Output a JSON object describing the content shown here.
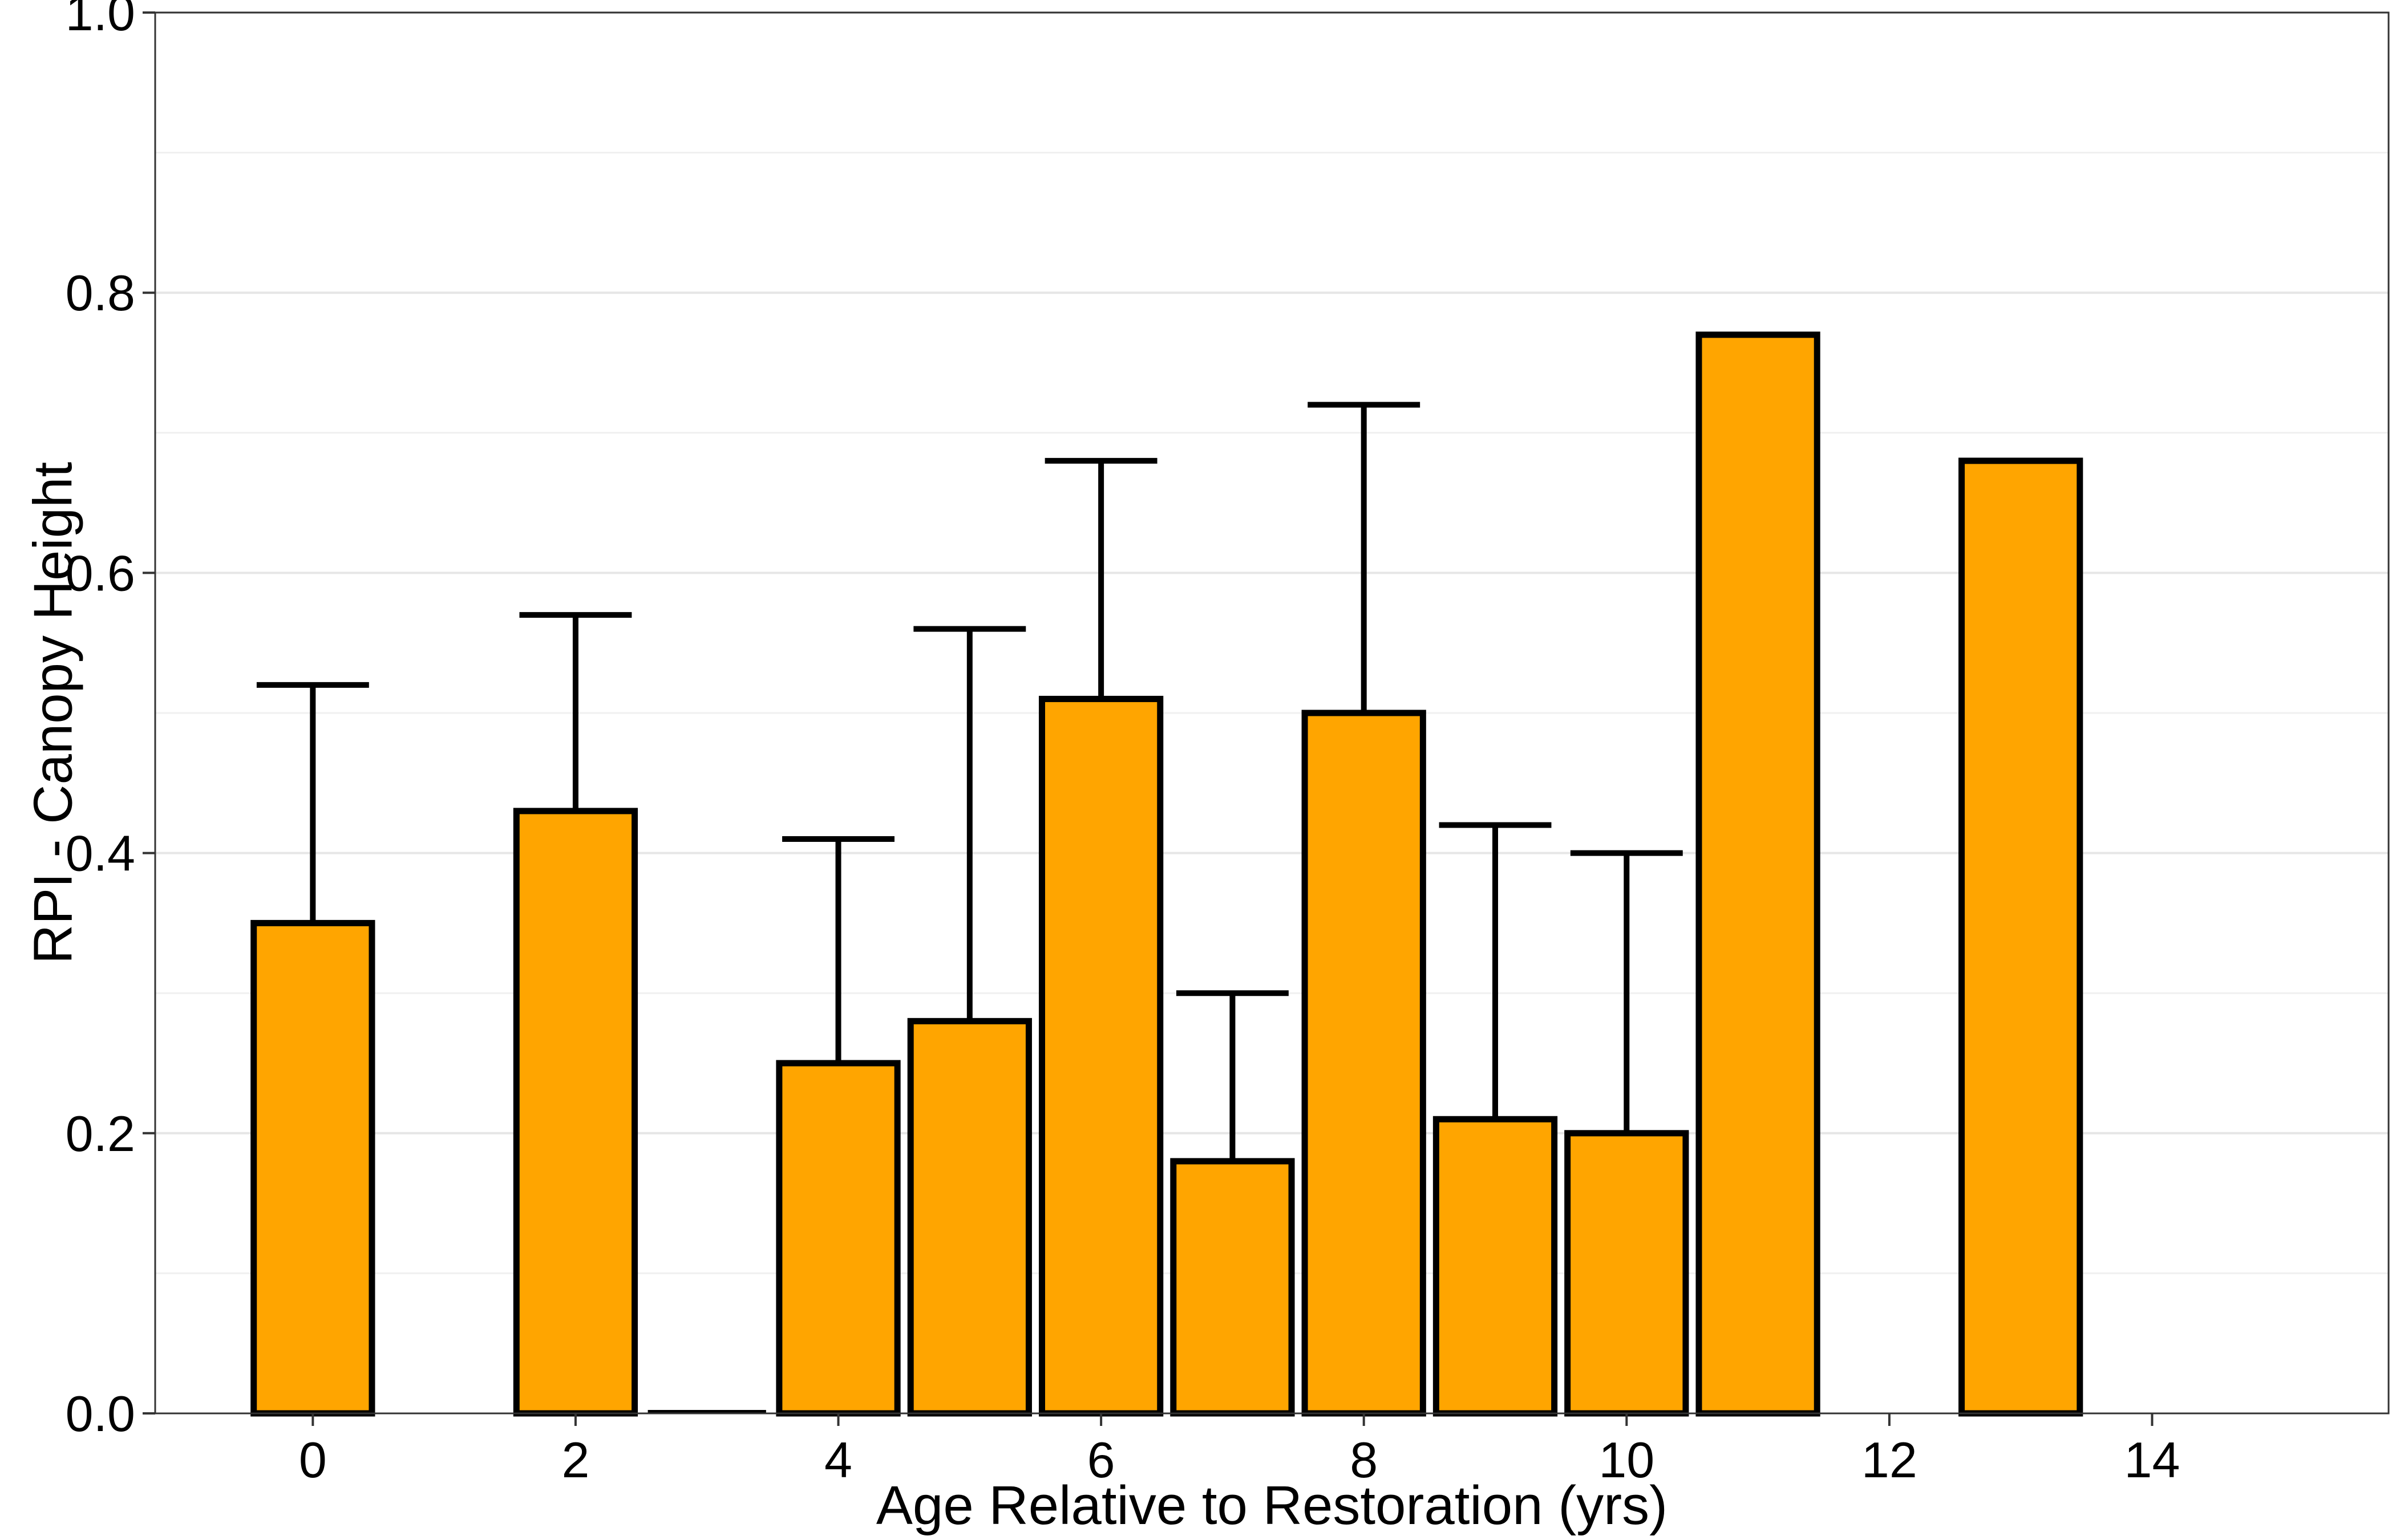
{
  "chart_data": {
    "type": "bar",
    "title": "",
    "xlabel": "Age Relative to Restoration (yrs)",
    "ylabel": "RPI - Canopy Height",
    "xlim": [
      -1.2,
      15.8
    ],
    "ylim": [
      0,
      1.0
    ],
    "x_ticks": [
      0,
      2,
      4,
      6,
      8,
      10,
      12,
      14
    ],
    "y_ticks": [
      0.0,
      0.2,
      0.4,
      0.6,
      0.8,
      1.0
    ],
    "y_tick_labels": [
      "0.0",
      "0.2",
      "0.4",
      "0.6",
      "0.8",
      "1.0"
    ],
    "grid": true,
    "bar_color": "#FFA500",
    "bar_edge_color": "#000000",
    "bar_width": 0.9,
    "series": [
      {
        "x": [
          0,
          2,
          3,
          4,
          5,
          6,
          7,
          8,
          9,
          10,
          11,
          13
        ],
        "values": [
          0.35,
          0.43,
          0.0,
          0.25,
          0.28,
          0.51,
          0.18,
          0.5,
          0.21,
          0.2,
          0.77,
          0.68
        ],
        "error_upper": [
          0.52,
          0.57,
          null,
          0.41,
          0.56,
          0.68,
          0.3,
          0.72,
          0.42,
          0.4,
          null,
          null
        ]
      }
    ]
  }
}
